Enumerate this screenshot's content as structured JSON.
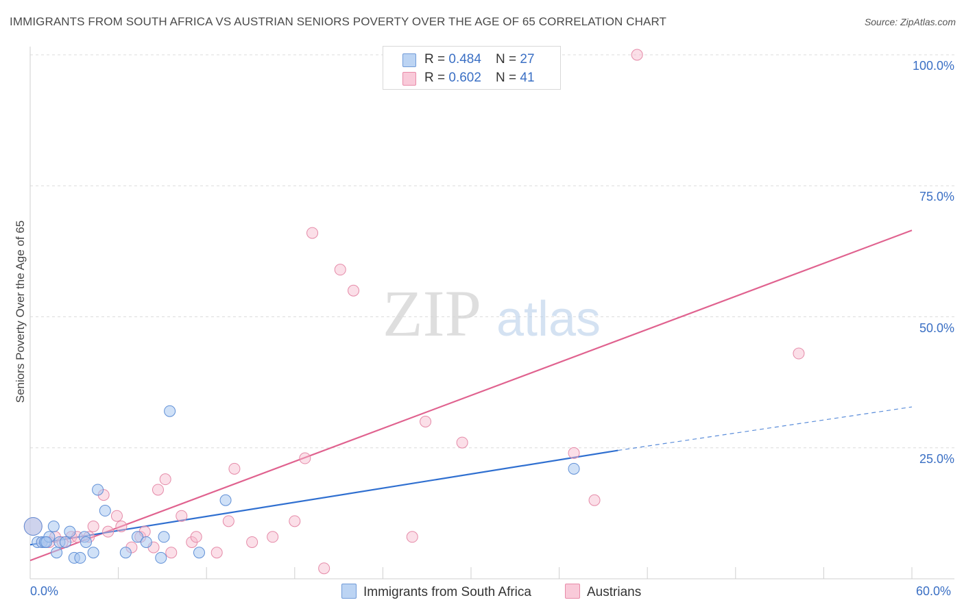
{
  "title": "IMMIGRANTS FROM SOUTH AFRICA VS AUSTRIAN SENIORS POVERTY OVER THE AGE OF 65 CORRELATION CHART",
  "source": "Source: ZipAtlas.com",
  "watermark": {
    "zip": "ZIP",
    "atlas": "atlas"
  },
  "legend_top": {
    "series1": {
      "r_label": "R = ",
      "r_value": "0.484",
      "n_label": "N = ",
      "n_value": "27"
    },
    "series2": {
      "r_label": "R = ",
      "r_value": "0.602",
      "n_label": "N = ",
      "n_value": "41"
    }
  },
  "chart_data": {
    "type": "scatter",
    "title": "IMMIGRANTS FROM SOUTH AFRICA VS AUSTRIAN SENIORS POVERTY OVER THE AGE OF 65 CORRELATION CHART",
    "xlabel": "",
    "ylabel": "Seniors Poverty Over the Age of 65",
    "xlim": [
      0,
      60
    ],
    "ylim": [
      0,
      100
    ],
    "x_tick_labels": {
      "min": "0.0%",
      "max": "60.0%"
    },
    "y_ticks": [
      {
        "value": 25,
        "label": "25.0%"
      },
      {
        "value": 50,
        "label": "50.0%"
      },
      {
        "value": 75,
        "label": "75.0%"
      },
      {
        "value": 100,
        "label": "100.0%"
      }
    ],
    "grid": true,
    "colors": {
      "series1": "#a9c8f0",
      "series1_line": "#2f6fd0",
      "series2": "#f6b8cc",
      "series2_line": "#e0628f"
    },
    "series": [
      {
        "name": "Immigrants from South Africa",
        "points": [
          [
            0.2,
            10
          ],
          [
            0.5,
            7
          ],
          [
            0.8,
            7
          ],
          [
            1.0,
            7
          ],
          [
            1.3,
            8
          ],
          [
            1.6,
            10
          ],
          [
            1.8,
            5
          ],
          [
            2.0,
            7
          ],
          [
            2.4,
            7
          ],
          [
            2.7,
            9
          ],
          [
            3.0,
            4
          ],
          [
            3.4,
            4
          ],
          [
            3.7,
            8
          ],
          [
            4.3,
            5
          ],
          [
            4.6,
            17
          ],
          [
            5.1,
            13
          ],
          [
            6.5,
            5
          ],
          [
            7.3,
            8
          ],
          [
            7.9,
            7
          ],
          [
            8.9,
            4
          ],
          [
            9.1,
            8
          ],
          [
            9.5,
            32
          ],
          [
            11.5,
            5
          ],
          [
            13.3,
            15
          ],
          [
            37.0,
            21
          ],
          [
            1.1,
            7
          ],
          [
            3.8,
            7
          ]
        ],
        "trend": {
          "x0": 0,
          "y0": 6.5,
          "x1": 40,
          "y1": 24.5,
          "dashed_to_x": 60,
          "dashed_to_y": 32.8
        }
      },
      {
        "name": "Austrians",
        "points": [
          [
            0.2,
            10
          ],
          [
            0.8,
            7
          ],
          [
            1.3,
            7
          ],
          [
            1.7,
            8
          ],
          [
            2.2,
            7
          ],
          [
            2.8,
            8
          ],
          [
            3.2,
            8
          ],
          [
            4.0,
            8
          ],
          [
            4.3,
            10
          ],
          [
            5.0,
            16
          ],
          [
            5.3,
            9
          ],
          [
            5.9,
            12
          ],
          [
            6.2,
            10
          ],
          [
            6.9,
            6
          ],
          [
            7.5,
            8
          ],
          [
            7.8,
            9
          ],
          [
            8.4,
            6
          ],
          [
            8.7,
            17
          ],
          [
            9.2,
            19
          ],
          [
            9.6,
            5
          ],
          [
            10.3,
            12
          ],
          [
            11.0,
            7
          ],
          [
            11.3,
            8
          ],
          [
            12.7,
            5
          ],
          [
            13.5,
            11
          ],
          [
            13.9,
            21
          ],
          [
            15.1,
            7
          ],
          [
            16.5,
            8
          ],
          [
            18.0,
            11
          ],
          [
            18.7,
            23
          ],
          [
            19.2,
            66
          ],
          [
            20.0,
            2
          ],
          [
            21.1,
            59
          ],
          [
            22.0,
            55
          ],
          [
            26.0,
            8
          ],
          [
            26.9,
            30
          ],
          [
            29.4,
            26
          ],
          [
            37.0,
            24
          ],
          [
            38.4,
            15
          ],
          [
            41.3,
            100
          ],
          [
            52.3,
            43
          ]
        ],
        "trend": {
          "x0": 0,
          "y0": 3.5,
          "x1": 60,
          "y1": 66.5
        }
      }
    ]
  },
  "legend_bottom": {
    "series1": "Immigrants from South Africa",
    "series2": "Austrians"
  }
}
